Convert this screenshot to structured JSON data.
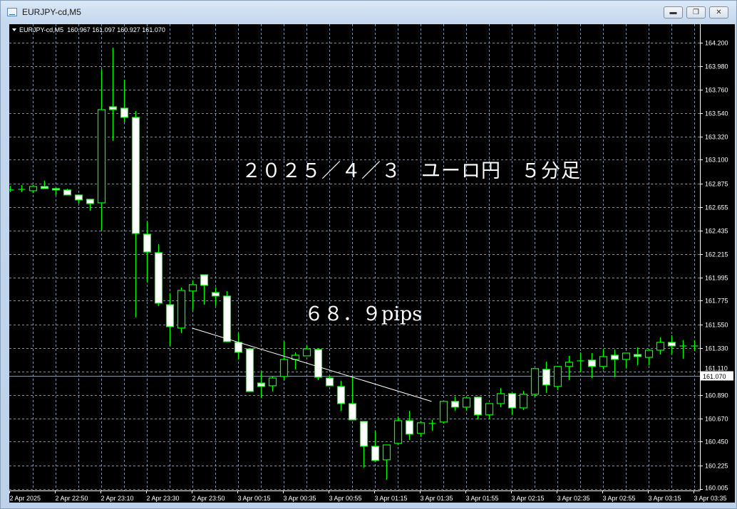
{
  "window": {
    "title": "EURJPY-cd,M5",
    "buttons": [
      "minimize",
      "restore",
      "close"
    ]
  },
  "header": {
    "symbol": "EURJPY-cd,M5",
    "ohlc": "160.967 161.097 160.927 161.070"
  },
  "annotations": {
    "title_text": "２０２５／４／３　ユーロ円　５分足",
    "pips_text": "６８．９pips"
  },
  "colors": {
    "background": "#000000",
    "candle_outline": "#00ff00",
    "bear_fill": "#ffffff",
    "bull_fill": "#000000",
    "grid": "#7f8c9c",
    "text": "#ffffff",
    "trendline": "#ffffff"
  },
  "chart_data": {
    "type": "candlestick",
    "symbol": "EURJPY-cd",
    "timeframe": "M5",
    "ylim": [
      160.005,
      164.2
    ],
    "grid": true,
    "current_price": "161.070",
    "y_ticks": [
      "164.200",
      "163.980",
      "163.760",
      "163.540",
      "163.320",
      "163.100",
      "162.875",
      "162.655",
      "162.435",
      "162.215",
      "161.995",
      "161.775",
      "161.550",
      "161.330",
      "161.110",
      "160.890",
      "160.670",
      "160.450",
      "160.225",
      "160.005"
    ],
    "x_ticks": [
      {
        "at": "2 Apr 22:30",
        "label": "2 Apr 2025"
      },
      {
        "at": "2 Apr 22:50",
        "label": "2 Apr 22:50"
      },
      {
        "at": "2 Apr 23:10",
        "label": "2 Apr 23:10"
      },
      {
        "at": "2 Apr 23:30",
        "label": "2 Apr 23:30"
      },
      {
        "at": "2 Apr 23:50",
        "label": "2 Apr 23:50"
      },
      {
        "at": "3 Apr 00:15",
        "label": "3 Apr 00:15"
      },
      {
        "at": "3 Apr 00:35",
        "label": "3 Apr 00:35"
      },
      {
        "at": "3 Apr 00:55",
        "label": "3 Apr 00:55"
      },
      {
        "at": "3 Apr 01:15",
        "label": "3 Apr 01:15"
      },
      {
        "at": "3 Apr 01:35",
        "label": "3 Apr 01:35"
      },
      {
        "at": "3 Apr 01:55",
        "label": "3 Apr 01:55"
      },
      {
        "at": "3 Apr 02:15",
        "label": "3 Apr 02:15"
      },
      {
        "at": "3 Apr 02:35",
        "label": "3 Apr 02:35"
      },
      {
        "at": "3 Apr 02:55",
        "label": "3 Apr 02:55"
      },
      {
        "at": "3 Apr 03:15",
        "label": "3 Apr 03:15"
      },
      {
        "at": "3 Apr 03:35",
        "label": "3 Apr 03:35"
      }
    ],
    "trendline": {
      "from": {
        "t": "2 Apr 23:50",
        "price": 161.518
      },
      "to": {
        "t": "3 Apr 01:40",
        "price": 160.829
      }
    },
    "candles": [
      {
        "t": "2 Apr 22:30",
        "o": 162.816,
        "h": 162.856,
        "l": 162.796,
        "c": 162.81
      },
      {
        "t": "2 Apr 22:35",
        "o": 162.822,
        "h": 162.862,
        "l": 162.796,
        "c": 162.822
      },
      {
        "t": "2 Apr 22:40",
        "o": 162.809,
        "h": 162.862,
        "l": 162.789,
        "c": 162.849
      },
      {
        "t": "2 Apr 22:45",
        "o": 162.849,
        "h": 162.903,
        "l": 162.829,
        "c": 162.829
      },
      {
        "t": "2 Apr 22:50",
        "o": 162.829,
        "h": 162.829,
        "l": 162.769,
        "c": 162.816
      },
      {
        "t": "2 Apr 22:55",
        "o": 162.816,
        "h": 162.829,
        "l": 162.769,
        "c": 162.769
      },
      {
        "t": "2 Apr 23:00",
        "o": 162.769,
        "h": 162.776,
        "l": 162.688,
        "c": 162.722
      },
      {
        "t": "2 Apr 23:05",
        "o": 162.729,
        "h": 162.729,
        "l": 162.621,
        "c": 162.688
      },
      {
        "t": "2 Apr 23:10",
        "o": 162.695,
        "h": 163.952,
        "l": 162.434,
        "c": 163.571
      },
      {
        "t": "2 Apr 23:15",
        "o": 163.598,
        "h": 164.153,
        "l": 163.277,
        "c": 163.571
      },
      {
        "t": "2 Apr 23:20",
        "o": 163.585,
        "h": 163.852,
        "l": 163.451,
        "c": 163.498
      },
      {
        "t": "2 Apr 23:25",
        "o": 163.498,
        "h": 163.558,
        "l": 161.618,
        "c": 162.407
      },
      {
        "t": "2 Apr 23:30",
        "o": 162.401,
        "h": 162.521,
        "l": 161.946,
        "c": 162.233
      },
      {
        "t": "2 Apr 23:35",
        "o": 162.227,
        "h": 162.307,
        "l": 161.725,
        "c": 161.752
      },
      {
        "t": "2 Apr 23:40",
        "o": 161.738,
        "h": 161.845,
        "l": 161.35,
        "c": 161.531
      },
      {
        "t": "2 Apr 23:45",
        "o": 161.518,
        "h": 161.899,
        "l": 161.471,
        "c": 161.872
      },
      {
        "t": "2 Apr 23:50",
        "o": 161.866,
        "h": 161.966,
        "l": 161.685,
        "c": 161.926
      },
      {
        "t": "2 Apr 23:55",
        "o": 162.019,
        "h": 162.019,
        "l": 161.738,
        "c": 161.919
      },
      {
        "t": "3 Apr 00:05",
        "o": 161.852,
        "h": 161.899,
        "l": 161.725,
        "c": 161.819
      },
      {
        "t": "3 Apr 00:10",
        "o": 161.819,
        "h": 161.866,
        "l": 161.39,
        "c": 161.39
      },
      {
        "t": "3 Apr 00:15",
        "o": 161.384,
        "h": 161.471,
        "l": 161.223,
        "c": 161.29
      },
      {
        "t": "3 Apr 00:20",
        "o": 161.323,
        "h": 161.323,
        "l": 160.922,
        "c": 160.922
      },
      {
        "t": "3 Apr 00:25",
        "o": 161.002,
        "h": 161.11,
        "l": 160.862,
        "c": 160.969
      },
      {
        "t": "3 Apr 00:30",
        "o": 160.976,
        "h": 161.063,
        "l": 160.922,
        "c": 161.049
      },
      {
        "t": "3 Apr 00:35",
        "o": 161.063,
        "h": 161.39,
        "l": 161.029,
        "c": 161.223
      },
      {
        "t": "3 Apr 00:40",
        "o": 161.223,
        "h": 161.29,
        "l": 161.13,
        "c": 161.263
      },
      {
        "t": "3 Apr 00:45",
        "o": 161.257,
        "h": 161.35,
        "l": 161.257,
        "c": 161.323
      },
      {
        "t": "3 Apr 00:50",
        "o": 161.317,
        "h": 161.323,
        "l": 161.029,
        "c": 161.056
      },
      {
        "t": "3 Apr 00:55",
        "o": 161.049,
        "h": 161.069,
        "l": 160.976,
        "c": 160.976
      },
      {
        "t": "3 Apr 01:00",
        "o": 160.969,
        "h": 161.023,
        "l": 160.741,
        "c": 160.808
      },
      {
        "t": "3 Apr 01:05",
        "o": 160.808,
        "h": 161.063,
        "l": 160.655,
        "c": 160.655
      },
      {
        "t": "3 Apr 01:10",
        "o": 160.641,
        "h": 160.641,
        "l": 160.207,
        "c": 160.407
      },
      {
        "t": "3 Apr 01:15",
        "o": 160.407,
        "h": 160.548,
        "l": 160.26,
        "c": 160.273
      },
      {
        "t": "3 Apr 01:20",
        "o": 160.28,
        "h": 160.42,
        "l": 160.093,
        "c": 160.42
      },
      {
        "t": "3 Apr 01:25",
        "o": 160.434,
        "h": 160.688,
        "l": 160.42,
        "c": 160.648
      },
      {
        "t": "3 Apr 01:30",
        "o": 160.648,
        "h": 160.742,
        "l": 160.467,
        "c": 160.521
      },
      {
        "t": "3 Apr 01:35",
        "o": 160.528,
        "h": 160.648,
        "l": 160.494,
        "c": 160.628
      },
      {
        "t": "3 Apr 01:40",
        "o": 160.621,
        "h": 160.655,
        "l": 160.554,
        "c": 160.621
      },
      {
        "t": "3 Apr 01:45",
        "o": 160.635,
        "h": 160.829,
        "l": 160.621,
        "c": 160.829
      },
      {
        "t": "3 Apr 01:50",
        "o": 160.829,
        "h": 160.876,
        "l": 160.742,
        "c": 160.775
      },
      {
        "t": "3 Apr 01:55",
        "o": 160.775,
        "h": 160.862,
        "l": 160.742,
        "c": 160.862
      },
      {
        "t": "3 Apr 02:00",
        "o": 160.869,
        "h": 160.869,
        "l": 160.661,
        "c": 160.702
      },
      {
        "t": "3 Apr 02:05",
        "o": 160.702,
        "h": 160.808,
        "l": 160.661,
        "c": 160.808
      },
      {
        "t": "3 Apr 02:10",
        "o": 160.808,
        "h": 160.956,
        "l": 160.775,
        "c": 160.902
      },
      {
        "t": "3 Apr 02:15",
        "o": 160.902,
        "h": 160.902,
        "l": 160.702,
        "c": 160.768
      },
      {
        "t": "3 Apr 02:20",
        "o": 160.768,
        "h": 160.929,
        "l": 160.748,
        "c": 160.896
      },
      {
        "t": "3 Apr 02:25",
        "o": 160.896,
        "h": 161.137,
        "l": 160.869,
        "c": 161.137
      },
      {
        "t": "3 Apr 02:30",
        "o": 161.13,
        "h": 161.203,
        "l": 160.909,
        "c": 160.983
      },
      {
        "t": "3 Apr 02:35",
        "o": 160.969,
        "h": 161.157,
        "l": 160.936,
        "c": 161.157
      },
      {
        "t": "3 Apr 02:40",
        "o": 161.157,
        "h": 161.257,
        "l": 161.029,
        "c": 161.197
      },
      {
        "t": "3 Apr 02:45",
        "o": 161.21,
        "h": 161.29,
        "l": 161.103,
        "c": 161.21
      },
      {
        "t": "3 Apr 02:50",
        "o": 161.217,
        "h": 161.283,
        "l": 161.049,
        "c": 161.157
      },
      {
        "t": "3 Apr 02:55",
        "o": 161.157,
        "h": 161.323,
        "l": 161.13,
        "c": 161.25
      },
      {
        "t": "3 Apr 03:00",
        "o": 161.263,
        "h": 161.317,
        "l": 161.056,
        "c": 161.223
      },
      {
        "t": "3 Apr 03:05",
        "o": 161.223,
        "h": 161.283,
        "l": 161.137,
        "c": 161.283
      },
      {
        "t": "3 Apr 03:10",
        "o": 161.27,
        "h": 161.337,
        "l": 161.17,
        "c": 161.25
      },
      {
        "t": "3 Apr 03:15",
        "o": 161.243,
        "h": 161.323,
        "l": 161.17,
        "c": 161.31
      },
      {
        "t": "3 Apr 03:20",
        "o": 161.31,
        "h": 161.431,
        "l": 161.27,
        "c": 161.384
      },
      {
        "t": "3 Apr 03:25",
        "o": 161.384,
        "h": 161.451,
        "l": 161.277,
        "c": 161.35
      },
      {
        "t": "3 Apr 03:30",
        "o": 161.35,
        "h": 161.404,
        "l": 161.23,
        "c": 161.35
      },
      {
        "t": "3 Apr 03:35",
        "o": 161.35,
        "h": 161.404,
        "l": 161.303,
        "c": 161.35
      }
    ]
  }
}
